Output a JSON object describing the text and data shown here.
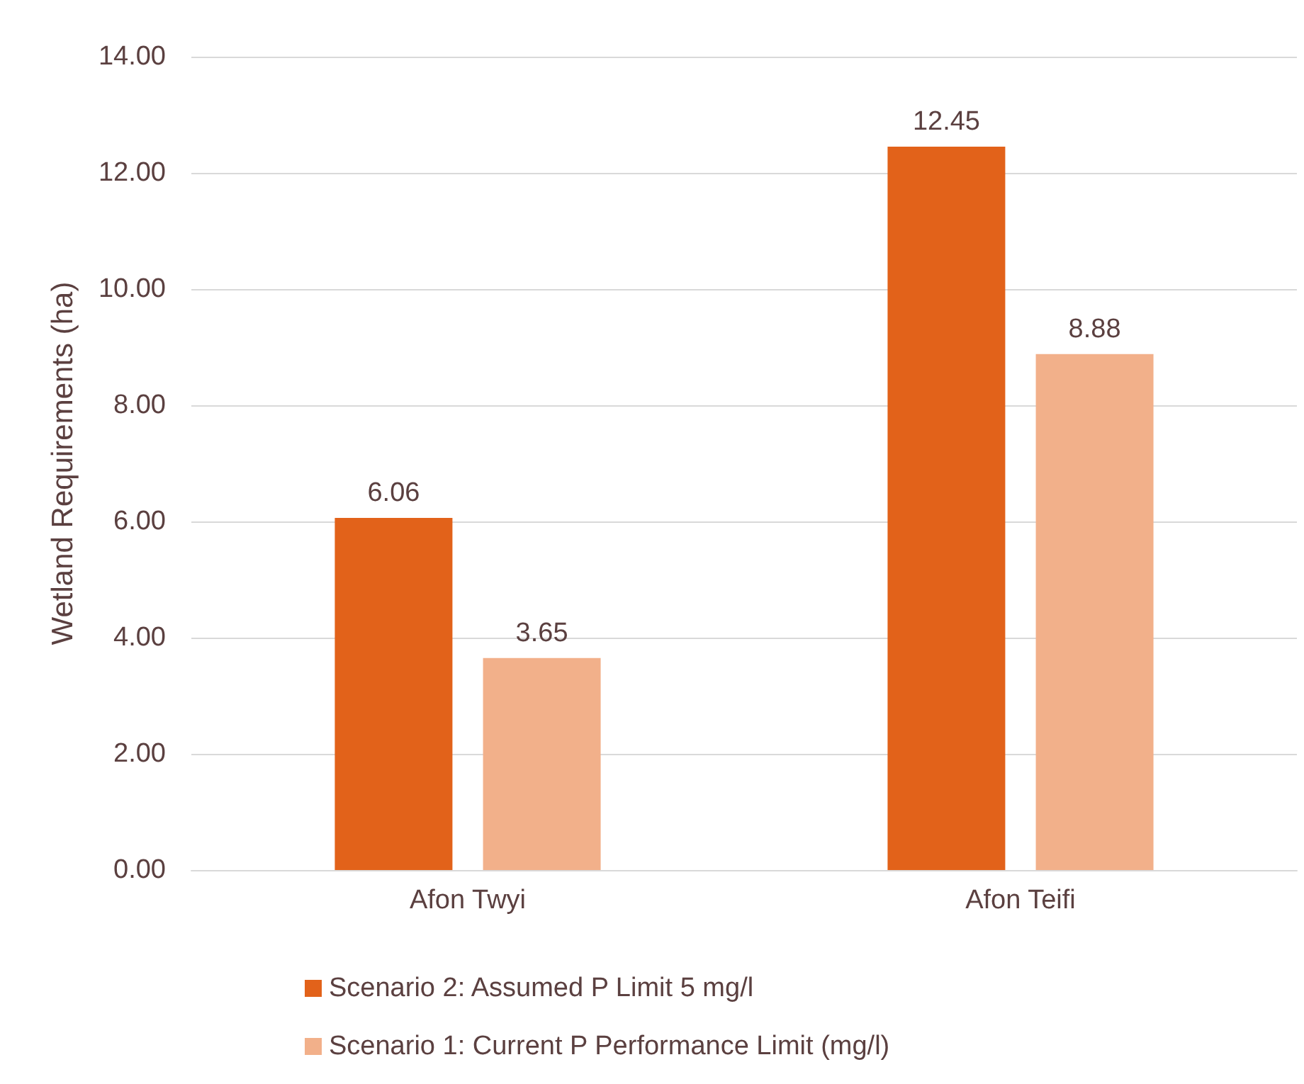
{
  "chart_data": {
    "type": "bar",
    "ylabel": "Wetland Requirements (ha)",
    "categories": [
      "Afon Twyi",
      "Afon Teifi"
    ],
    "series": [
      {
        "name": "Scenario 2: Assumed P Limit 5 mg/l",
        "color": "#e2621a",
        "values": [
          6.06,
          12.45
        ]
      },
      {
        "name": "Scenario 1: Current P Performance Limit (mg/l)",
        "color": "#f2b08a",
        "values": [
          3.65,
          8.88
        ]
      }
    ],
    "ylim": [
      0,
      14
    ],
    "yticks": [
      {
        "value": 0,
        "label": "0.00"
      },
      {
        "value": 2,
        "label": "2.00"
      },
      {
        "value": 4,
        "label": "4.00"
      },
      {
        "value": 6,
        "label": "6.00"
      },
      {
        "value": 8,
        "label": "8.00"
      },
      {
        "value": 10,
        "label": "10.00"
      },
      {
        "value": 12,
        "label": "12.00"
      },
      {
        "value": 14,
        "label": "14.00"
      }
    ],
    "grid": "y",
    "legend": "bottom",
    "data_labels": true
  }
}
